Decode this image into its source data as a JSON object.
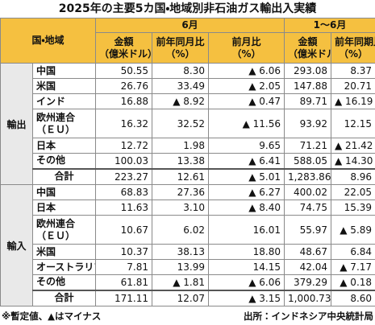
{
  "title": "2025年の主要5カ国・地域別非石油ガス輸出入実績",
  "table": {
    "header": {
      "region": "国・地域",
      "june": "6月",
      "ytd": "1〜6月",
      "columns": [
        [
          "金額",
          "（億米ドル）"
        ],
        [
          "前年同月比",
          "（%）"
        ],
        [
          "前月比",
          "（%）"
        ],
        [
          "金額",
          "（億米ドル）"
        ],
        [
          "前年同期比",
          "（%）"
        ]
      ]
    },
    "groups": [
      {
        "label": "輸出",
        "rows": [
          {
            "name": [
              "中国"
            ],
            "values": [
              "50.55",
              "8.30",
              "▲ 6.06",
              "293.08",
              "8.37"
            ]
          },
          {
            "name": [
              "米国"
            ],
            "values": [
              "26.76",
              "33.49",
              "▲ 2.05",
              "147.88",
              "20.71"
            ]
          },
          {
            "name": [
              "インド"
            ],
            "values": [
              "16.88",
              "▲ 8.92",
              "▲ 0.47",
              "89.71",
              "▲ 16.19"
            ]
          },
          {
            "name": [
              "欧州連合",
              "（ＥＵ）"
            ],
            "values": [
              "16.32",
              "32.52",
              "▲ 11.56",
              "93.92",
              "12.15"
            ]
          },
          {
            "name": [
              "日本"
            ],
            "values": [
              "12.72",
              "1.98",
              "9.65",
              "71.21",
              "▲ 21.42"
            ]
          },
          {
            "name": [
              "その他"
            ],
            "values": [
              "100.03",
              "13.38",
              "▲ 6.41",
              "588.05",
              "▲ 14.30"
            ]
          }
        ],
        "total": {
          "name": "合計",
          "values": [
            "223.27",
            "12.61",
            "▲ 5.01",
            "1,283.86",
            "8.96"
          ]
        }
      },
      {
        "label": "輸入",
        "rows": [
          {
            "name": [
              "中国"
            ],
            "values": [
              "68.83",
              "27.36",
              "▲ 6.27",
              "400.02",
              "22.05"
            ]
          },
          {
            "name": [
              "日本"
            ],
            "values": [
              "11.63",
              "3.10",
              "▲ 8.40",
              "74.75",
              "15.39"
            ]
          },
          {
            "name": [
              "欧州連合",
              "（ＥＵ）"
            ],
            "values": [
              "10.67",
              "6.02",
              "16.01",
              "55.97",
              "▲ 5.89"
            ]
          },
          {
            "name": [
              "米国"
            ],
            "values": [
              "10.37",
              "38.13",
              "18.80",
              "48.67",
              "6.84"
            ]
          },
          {
            "name": [
              "オーストラリア"
            ],
            "values": [
              "7.81",
              "13.99",
              "14.15",
              "42.04",
              "▲ 7.17"
            ]
          },
          {
            "name": [
              "その他"
            ],
            "values": [
              "61.81",
              "▲ 1.81",
              "▲ 6.06",
              "379.29",
              "▲ 0.18"
            ]
          }
        ],
        "total": {
          "name": "合計",
          "values": [
            "171.11",
            "12.07",
            "▲ 3.15",
            "1,000.73",
            "8.60"
          ]
        }
      }
    ]
  },
  "footer": {
    "note": "※暫定値、▲はマイナス",
    "source": "出所：インドネシア中央統計局"
  }
}
